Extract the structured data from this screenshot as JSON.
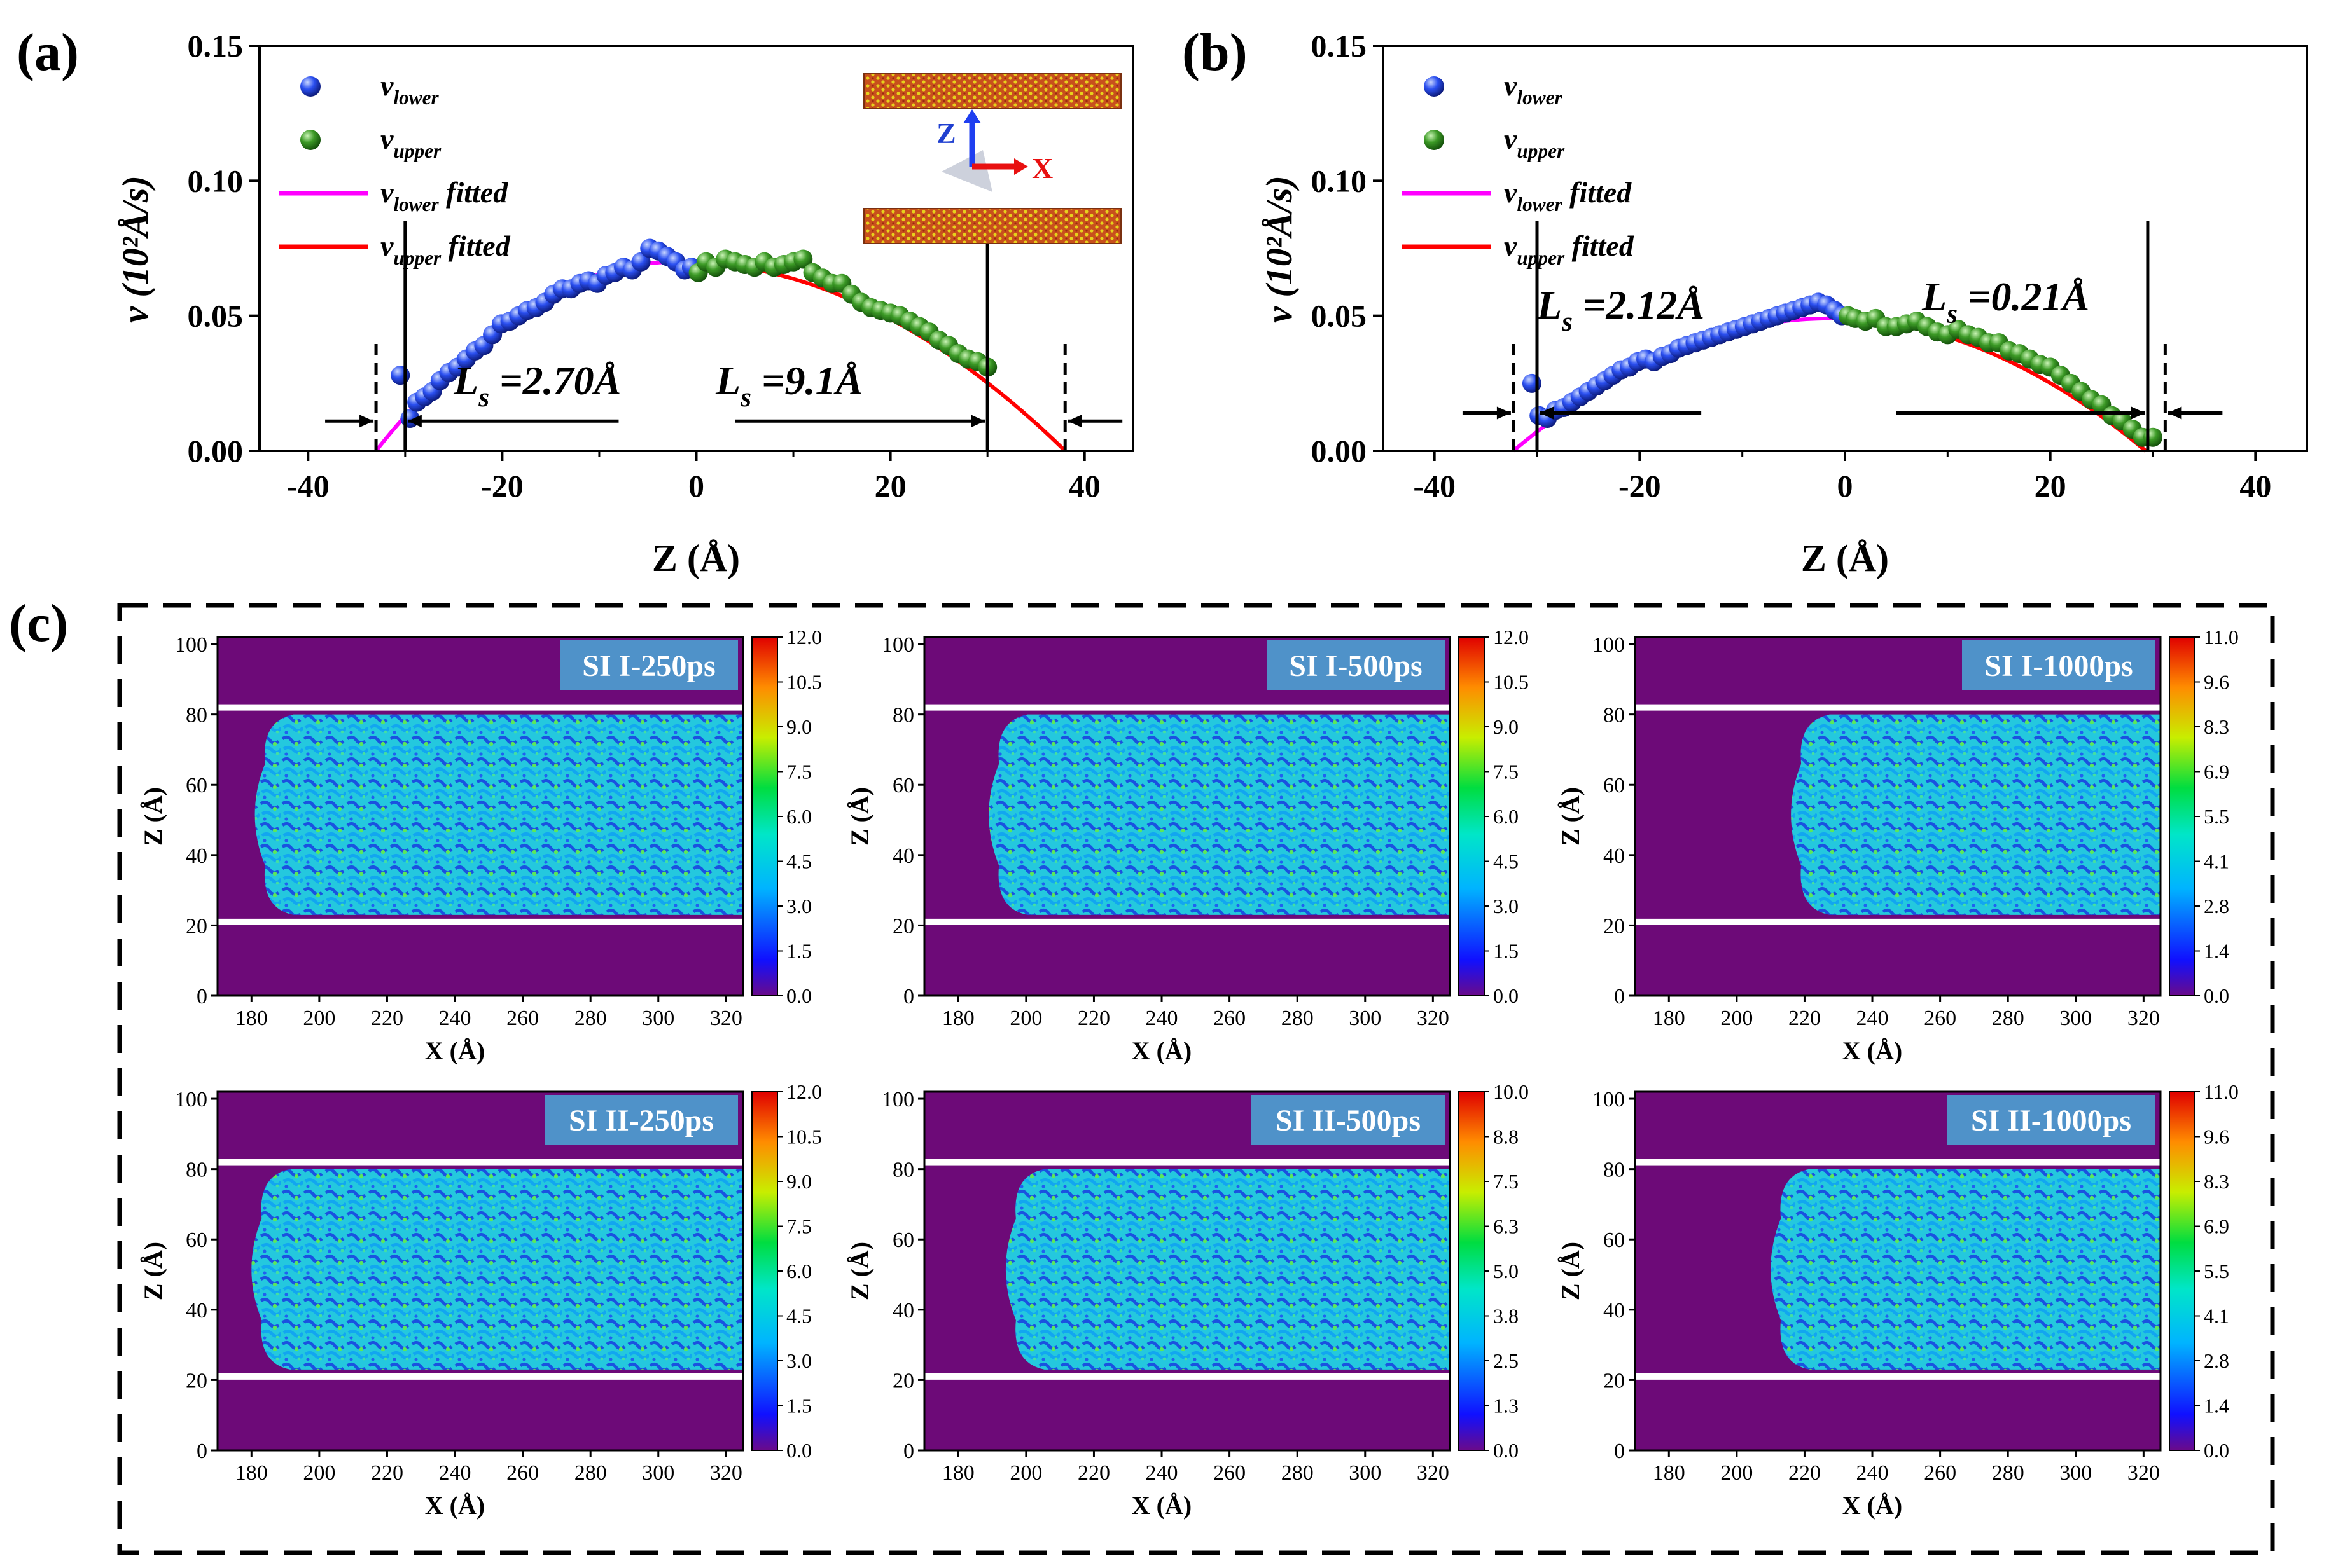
{
  "figure": {
    "panel_labels": [
      "(a)",
      "(b)",
      "(c)"
    ]
  },
  "chart_data": [
    {
      "id": "a",
      "type": "scatter",
      "xlabel": "Z (Å)",
      "ylabel": "v (10²Å/s)",
      "xlim": [
        -45,
        45
      ],
      "ylim": [
        0,
        0.15
      ],
      "xticks": [
        -40,
        -20,
        0,
        20,
        40
      ],
      "yticks": [
        0.0,
        0.05,
        0.1,
        0.15
      ],
      "legend": {
        "position": "top-left",
        "entries": [
          {
            "label": "v_lower",
            "marker": "sphere",
            "color": "#1c3fd8"
          },
          {
            "label": "v_upper",
            "marker": "sphere",
            "color": "#2e8b1e"
          },
          {
            "label": "v_lower fitted",
            "marker": "line",
            "color": "#ff00ff"
          },
          {
            "label": "v_upper  fitted",
            "marker": "line",
            "color": "#ff0000"
          }
        ]
      },
      "series": [
        {
          "name": "v_lower",
          "x": [
            -30.5,
            -29.5,
            -28.8,
            -28,
            -27.2,
            -26.4,
            -25.5,
            -24.6,
            -23.7,
            -22.8,
            -21.9,
            -21,
            -20.1,
            -19.2,
            -18.3,
            -17.4,
            -16.5,
            -15.6,
            -14.7,
            -13.8,
            -12.9,
            -12,
            -11.1,
            -10.2,
            -9.3,
            -8.4,
            -7.5,
            -6.6,
            -5.7,
            -4.8,
            -3.9,
            -3,
            -2.1,
            -1.2,
            -0.5
          ],
          "y": [
            0.028,
            0.012,
            0.018,
            0.02,
            0.022,
            0.026,
            0.029,
            0.031,
            0.034,
            0.037,
            0.039,
            0.043,
            0.047,
            0.048,
            0.05,
            0.052,
            0.053,
            0.055,
            0.058,
            0.06,
            0.06,
            0.062,
            0.063,
            0.062,
            0.065,
            0.066,
            0.068,
            0.067,
            0.07,
            0.075,
            0.074,
            0.072,
            0.07,
            0.067,
            0.068
          ]
        },
        {
          "name": "v_upper",
          "x": [
            0.2,
            1,
            2,
            3,
            4,
            5,
            6,
            7,
            8,
            9,
            10,
            11,
            12,
            13,
            14,
            15,
            16,
            17,
            18,
            19,
            20,
            21,
            22,
            23,
            24,
            25,
            26,
            27,
            28,
            29,
            30
          ],
          "y": [
            0.066,
            0.07,
            0.068,
            0.071,
            0.07,
            0.069,
            0.068,
            0.07,
            0.068,
            0.069,
            0.07,
            0.071,
            0.066,
            0.064,
            0.062,
            0.062,
            0.058,
            0.055,
            0.053,
            0.052,
            0.051,
            0.05,
            0.048,
            0.046,
            0.044,
            0.041,
            0.039,
            0.036,
            0.034,
            0.033,
            0.031
          ]
        }
      ],
      "fits": [
        {
          "name": "v_lower fitted",
          "color": "#ff00ff",
          "vertex_z": -2,
          "vmax": 0.07,
          "z0": -33,
          "x_range": [
            -33,
            0
          ]
        },
        {
          "name": "v_upper fitted",
          "color": "#ff0000",
          "vertex_z": -2,
          "vmax": 0.07,
          "z0": 38,
          "x_range": [
            0,
            38
          ]
        }
      ],
      "wall_lines": [
        -30,
        30
      ],
      "slip_lines": [
        -33,
        38
      ],
      "annotations": [
        {
          "text": "L_s =2.70Å",
          "x": -25,
          "y": 0.021
        },
        {
          "text": "L_s =9.1Å",
          "x": 2,
          "y": 0.021
        }
      ],
      "inset": {
        "axis_labels": [
          "Z",
          "X"
        ]
      }
    },
    {
      "id": "b",
      "type": "scatter",
      "xlabel": "Z (Å)",
      "ylabel": "v (10²Å/s)",
      "xlim": [
        -45,
        45
      ],
      "ylim": [
        0,
        0.15
      ],
      "xticks": [
        -40,
        -20,
        0,
        20,
        40
      ],
      "yticks": [
        0.0,
        0.05,
        0.1,
        0.15
      ],
      "legend": {
        "position": "top-left",
        "entries": [
          {
            "label": "v_lower",
            "marker": "sphere",
            "color": "#1c3fd8"
          },
          {
            "label": "v_upper",
            "marker": "sphere",
            "color": "#2e8b1e"
          },
          {
            "label": "v_lower fitted",
            "marker": "line",
            "color": "#ff00ff"
          },
          {
            "label": "v_upper  fitted",
            "marker": "line",
            "color": "#ff0000"
          }
        ]
      },
      "series": [
        {
          "name": "v_lower",
          "x": [
            -30.5,
            -29.8,
            -29,
            -28.2,
            -27.4,
            -26.6,
            -25.8,
            -25,
            -24.2,
            -23.4,
            -22.6,
            -21.8,
            -21,
            -20.2,
            -19.4,
            -18.6,
            -17.8,
            -17,
            -16.2,
            -15.4,
            -14.6,
            -13.8,
            -13,
            -12.2,
            -11.4,
            -10.6,
            -9.8,
            -9,
            -8.2,
            -7.4,
            -6.6,
            -5.8,
            -5,
            -4.2,
            -3.4,
            -2.6,
            -1.8,
            -1,
            -0.3
          ],
          "y": [
            0.025,
            0.013,
            0.012,
            0.015,
            0.016,
            0.018,
            0.02,
            0.022,
            0.024,
            0.026,
            0.028,
            0.03,
            0.031,
            0.033,
            0.034,
            0.033,
            0.035,
            0.036,
            0.038,
            0.039,
            0.04,
            0.041,
            0.042,
            0.043,
            0.044,
            0.045,
            0.046,
            0.047,
            0.048,
            0.049,
            0.05,
            0.051,
            0.052,
            0.053,
            0.054,
            0.055,
            0.054,
            0.052,
            0.05
          ]
        },
        {
          "name": "v_upper",
          "x": [
            0.3,
            1,
            2,
            3,
            4,
            5,
            6,
            7,
            8,
            9,
            10,
            11,
            12,
            13,
            14,
            15,
            16,
            17,
            18,
            19,
            20,
            21,
            22,
            23,
            24,
            25,
            26,
            27,
            28,
            29,
            30
          ],
          "y": [
            0.05,
            0.049,
            0.048,
            0.049,
            0.046,
            0.046,
            0.047,
            0.048,
            0.046,
            0.044,
            0.043,
            0.045,
            0.043,
            0.042,
            0.04,
            0.04,
            0.037,
            0.036,
            0.034,
            0.032,
            0.031,
            0.028,
            0.025,
            0.022,
            0.019,
            0.017,
            0.013,
            0.011,
            0.008,
            0.005,
            0.005
          ]
        }
      ],
      "fits": [
        {
          "name": "v_lower fitted",
          "color": "#ff00ff",
          "vertex_z": -1.5,
          "vmax": 0.049,
          "z0": -32.3,
          "x_range": [
            -32.3,
            0
          ]
        },
        {
          "name": "v_upper fitted",
          "color": "#ff0000",
          "vertex_z": -1.5,
          "vmax": 0.049,
          "z0": 29.3,
          "x_range": [
            0,
            29.3
          ]
        }
      ],
      "wall_lines": [
        -30,
        29.5
      ],
      "slip_lines": [
        -32.3,
        31.2
      ],
      "annotations": [
        {
          "text": "L_s =2.12Å",
          "x": -30,
          "y": 0.049
        },
        {
          "text": "L_s =0.21Å",
          "x": 7.5,
          "y": 0.052
        }
      ]
    },
    {
      "id": "c",
      "type": "heatmap",
      "xlabel": "X (Å)",
      "ylabel": "Z (Å)",
      "xlim": [
        170,
        325
      ],
      "ylim": [
        0,
        102
      ],
      "xticks": [
        180,
        200,
        220,
        240,
        260,
        280,
        300,
        320
      ],
      "yticks": [
        0,
        20,
        40,
        60,
        80,
        100
      ],
      "wall_z": [
        82,
        21
      ],
      "panels": [
        {
          "title": "SI I-250ps",
          "front_x": 184,
          "colorbar_ticks": [
            "0.0",
            "1.5",
            "3.0",
            "4.5",
            "6.0",
            "7.5",
            "9.0",
            "10.5",
            "12.0"
          ]
        },
        {
          "title": "SI I-500ps",
          "front_x": 192,
          "colorbar_ticks": [
            "0.0",
            "1.5",
            "3.0",
            "4.5",
            "6.0",
            "7.5",
            "9.0",
            "10.5",
            "12.0"
          ]
        },
        {
          "title": "SI I-1000ps",
          "front_x": 219,
          "colorbar_ticks": [
            "0.0",
            "1.4",
            "2.8",
            "4.1",
            "5.5",
            "6.9",
            "8.3",
            "9.6",
            "11.0"
          ]
        },
        {
          "title": "SI II-250ps",
          "front_x": 183,
          "colorbar_ticks": [
            "0.0",
            "1.5",
            "3.0",
            "4.5",
            "6.0",
            "7.5",
            "9.0",
            "10.5",
            "12.0"
          ]
        },
        {
          "title": "SI II-500ps",
          "front_x": 197,
          "colorbar_ticks": [
            "0.0",
            "1.3",
            "2.5",
            "3.8",
            "5.0",
            "6.3",
            "7.5",
            "8.8",
            "10.0"
          ]
        },
        {
          "title": "SI II-1000ps",
          "front_x": 213,
          "colorbar_ticks": [
            "0.0",
            "1.4",
            "2.8",
            "4.1",
            "5.5",
            "6.9",
            "8.3",
            "9.6",
            "11.0"
          ]
        }
      ]
    }
  ]
}
